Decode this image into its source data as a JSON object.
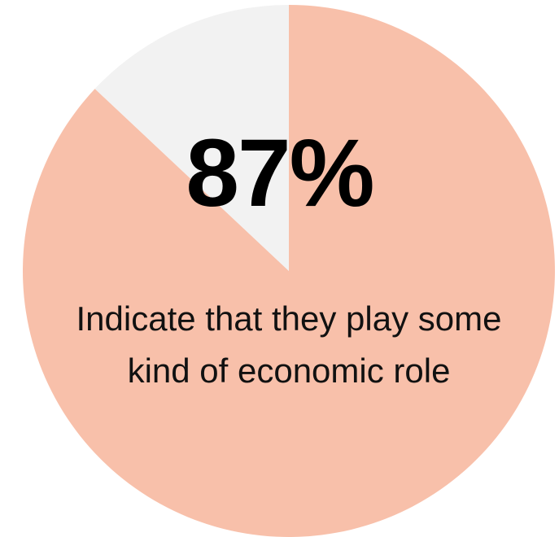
{
  "chart_data": {
    "type": "pie",
    "slices": [
      {
        "label": "Indicate that they play some kind of economic role",
        "value": 87,
        "color": "#F8C0AA"
      },
      {
        "label": "",
        "value": 13,
        "color": "#F2F2F2"
      }
    ],
    "start_angle_deg": 0,
    "direction": "clockwise",
    "legend": "none"
  },
  "center_label": {
    "value": "87%",
    "caption": "Indicate that they play some kind of economic role"
  }
}
